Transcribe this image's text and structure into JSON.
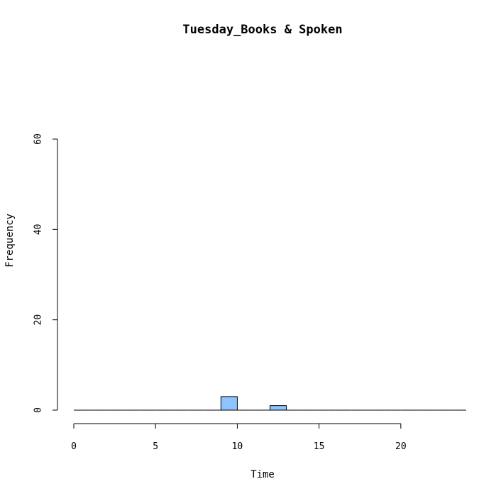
{
  "chart_data": {
    "type": "bar",
    "title": "Tuesday_Books & Spoken",
    "xlabel": "Time",
    "ylabel": "Frequency",
    "xlim": [
      0,
      24
    ],
    "ylim": [
      0,
      60
    ],
    "x_ticks": [
      0,
      5,
      10,
      15,
      20
    ],
    "y_ticks": [
      0,
      20,
      40,
      60
    ],
    "bin_width": 1,
    "bins": [
      0,
      1,
      2,
      3,
      4,
      5,
      6,
      7,
      8,
      9,
      10,
      11,
      12,
      13,
      14,
      15,
      16,
      17,
      18,
      19,
      20,
      21,
      22,
      23
    ],
    "values": [
      0,
      0,
      0,
      0,
      0,
      0,
      0,
      0,
      0,
      3,
      0,
      0,
      1,
      0,
      0,
      0,
      0,
      0,
      0,
      0,
      0,
      0,
      0,
      0
    ],
    "bar_color": "#8DC4FF",
    "grid": false,
    "legend": "none"
  }
}
